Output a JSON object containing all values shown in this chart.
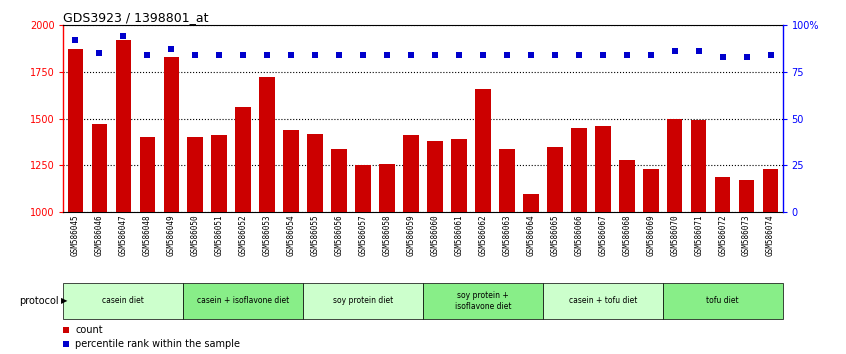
{
  "title": "GDS3923 / 1398801_at",
  "samples": [
    "GSM586045",
    "GSM586046",
    "GSM586047",
    "GSM586048",
    "GSM586049",
    "GSM586050",
    "GSM586051",
    "GSM586052",
    "GSM586053",
    "GSM586054",
    "GSM586055",
    "GSM586056",
    "GSM586057",
    "GSM586058",
    "GSM586059",
    "GSM586060",
    "GSM586061",
    "GSM586062",
    "GSM586063",
    "GSM586064",
    "GSM586065",
    "GSM586066",
    "GSM586067",
    "GSM586068",
    "GSM586069",
    "GSM586070",
    "GSM586071",
    "GSM586072",
    "GSM586073",
    "GSM586074"
  ],
  "counts": [
    1870,
    1470,
    1920,
    1400,
    1830,
    1400,
    1410,
    1560,
    1720,
    1440,
    1420,
    1340,
    1250,
    1260,
    1410,
    1380,
    1390,
    1660,
    1340,
    1100,
    1350,
    1450,
    1460,
    1280,
    1230,
    1500,
    1490,
    1190,
    1175,
    1230
  ],
  "percentile": [
    92,
    85,
    94,
    84,
    87,
    84,
    84,
    84,
    84,
    84,
    84,
    84,
    84,
    84,
    84,
    84,
    84,
    84,
    84,
    84,
    84,
    84,
    84,
    84,
    84,
    86,
    86,
    83,
    83,
    84
  ],
  "ylim_left": [
    1000,
    2000
  ],
  "ylim_right": [
    0,
    100
  ],
  "yticks_left": [
    1000,
    1250,
    1500,
    1750,
    2000
  ],
  "yticks_right": [
    0,
    25,
    50,
    75,
    100
  ],
  "ytick_labels_right": [
    "0",
    "25",
    "50",
    "75",
    "100%"
  ],
  "bar_color": "#cc0000",
  "dot_color": "#0000cc",
  "protocol_groups": [
    {
      "label": "casein diet",
      "start": 0,
      "end": 5,
      "color": "#ccffcc"
    },
    {
      "label": "casein + isoflavone diet",
      "start": 5,
      "end": 10,
      "color": "#88ee88"
    },
    {
      "label": "soy protein diet",
      "start": 10,
      "end": 15,
      "color": "#ccffcc"
    },
    {
      "label": "soy protein +\nisoflavone diet",
      "start": 15,
      "end": 20,
      "color": "#88ee88"
    },
    {
      "label": "casein + tofu diet",
      "start": 20,
      "end": 25,
      "color": "#ccffcc"
    },
    {
      "label": "tofu diet",
      "start": 25,
      "end": 30,
      "color": "#88ee88"
    }
  ],
  "protocol_label": "protocol",
  "legend_count_label": "count",
  "legend_pct_label": "percentile rank within the sample",
  "bg_color": "#ffffff",
  "tick_bg_color": "#d4d4d4"
}
